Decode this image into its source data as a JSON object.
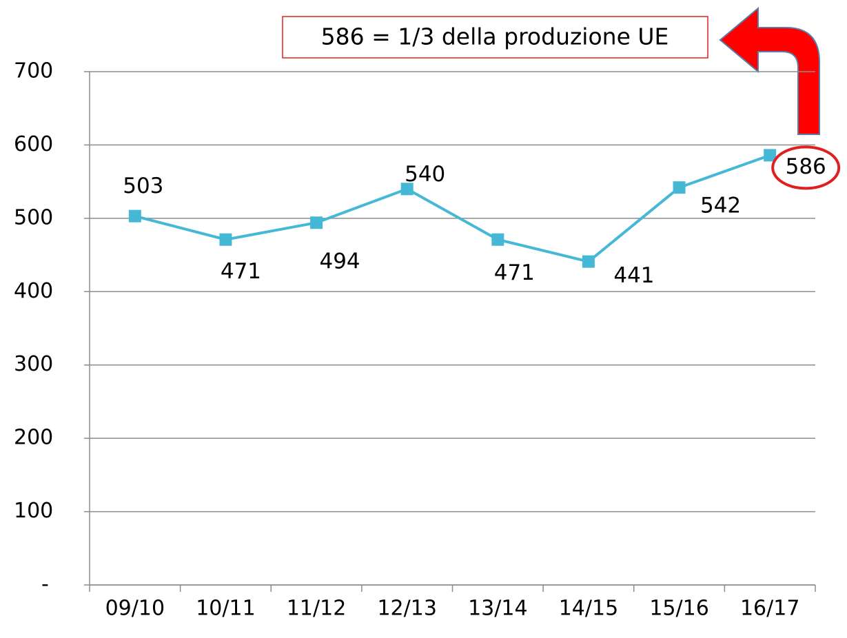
{
  "chart_data": {
    "type": "line",
    "annotation": "586 = 1/3 della produzione UE",
    "categories": [
      "09/10",
      "10/11",
      "11/12",
      "12/13",
      "13/14",
      "14/15",
      "15/16",
      "16/17"
    ],
    "series": [
      {
        "color": "#45b8d6",
        "values": [
          503,
          471,
          494,
          540,
          471,
          441,
          542,
          586
        ]
      }
    ],
    "ylim": [
      0,
      700
    ],
    "yticks": [
      {
        "value": 0,
        "label": "-"
      },
      100,
      200,
      300,
      400,
      500,
      600,
      700
    ],
    "grid": true
  }
}
